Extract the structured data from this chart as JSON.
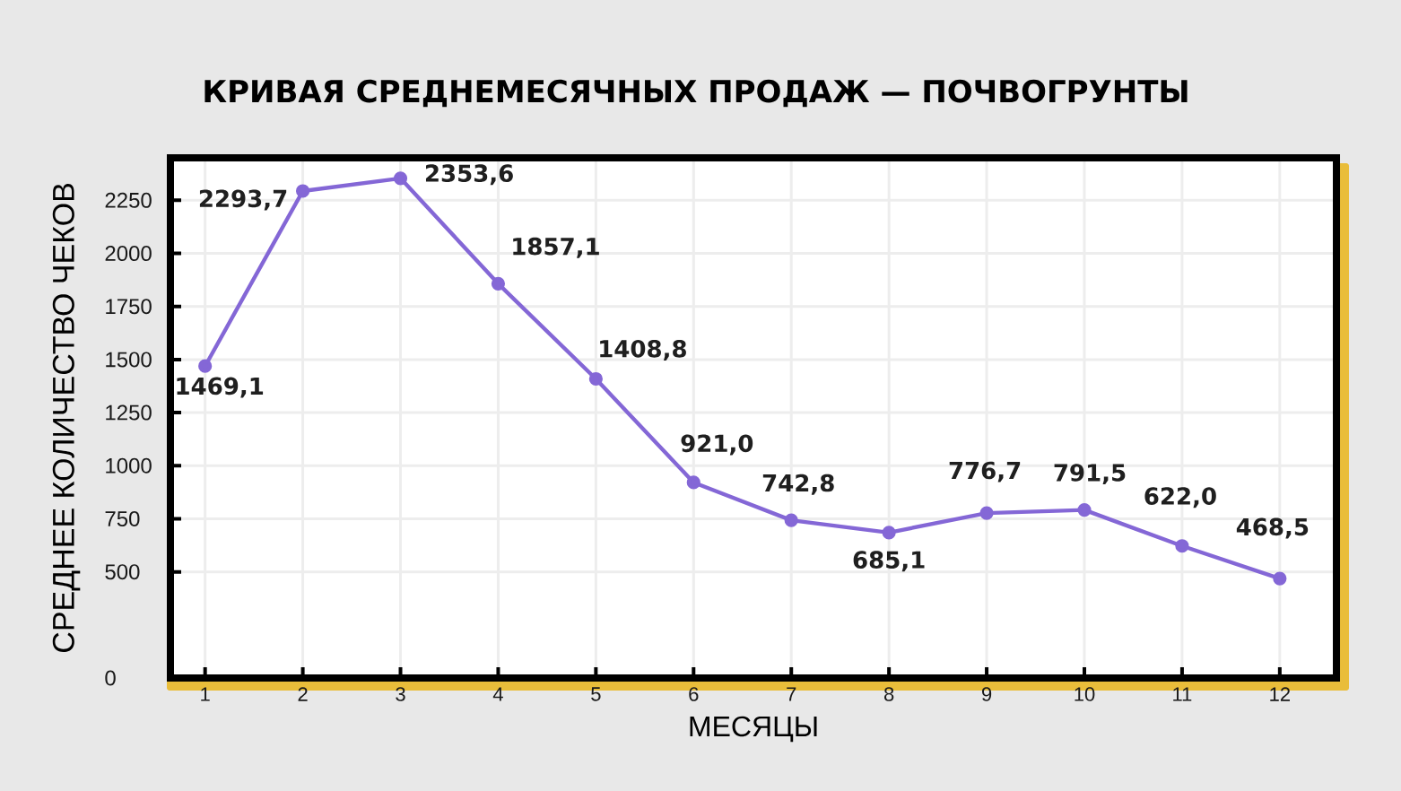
{
  "chart_data": {
    "type": "line",
    "title": "КРИВАЯ СРЕДНЕМЕСЯЧНЫХ ПРОДАЖ — ПОЧВОГРУНТЫ",
    "xlabel": "МЕСЯЦЫ",
    "ylabel": "СРЕДНЕЕ КОЛИЧЕСТВО ЧЕКОВ",
    "categories": [
      "1",
      "2",
      "3",
      "4",
      "5",
      "6",
      "7",
      "8",
      "9",
      "10",
      "11",
      "12"
    ],
    "values": [
      1469.1,
      2293.7,
      2353.6,
      1857.1,
      1408.8,
      921.0,
      742.8,
      685.1,
      776.7,
      791.5,
      622.0,
      468.5
    ],
    "value_labels": [
      "1469,1",
      "2293,7",
      "2353,6",
      "1857,1",
      "1408,8",
      "921,0",
      "742,8",
      "685,1",
      "776,7",
      "791,5",
      "622,0",
      "468,5"
    ],
    "color": "#8467d6",
    "ylim": [
      0,
      2450
    ],
    "yticks": [
      0,
      500,
      750,
      1000,
      1250,
      1500,
      1750,
      2000,
      2250
    ],
    "grid": true,
    "marker": "circle",
    "line_style": "solid"
  }
}
